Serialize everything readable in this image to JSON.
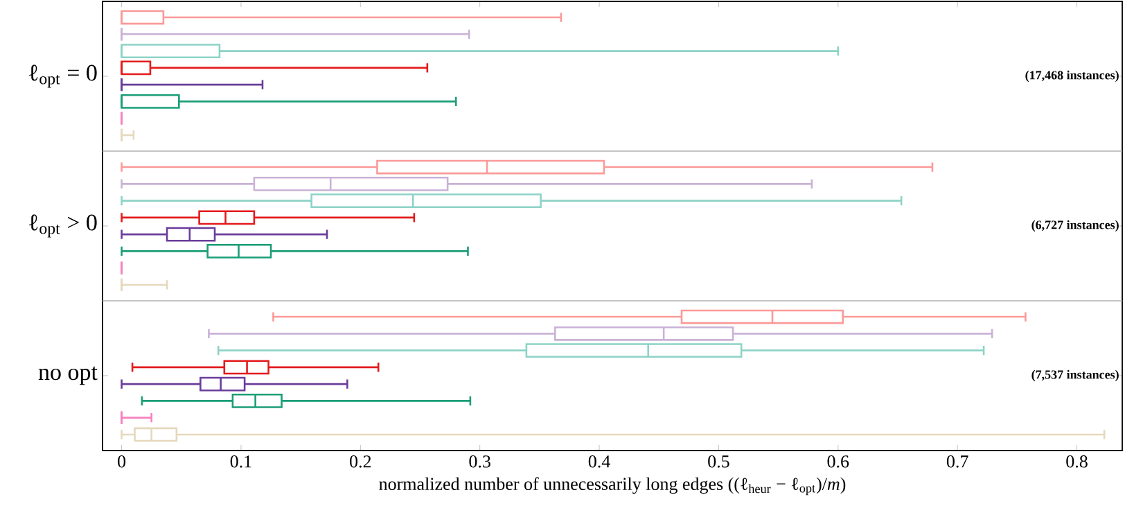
{
  "chart_data": {
    "type": "box",
    "orientation": "horizontal",
    "categories": [
      "ℓ$_{opt}$ = 0",
      "ℓ$_{opt}$ > 0",
      "no opt"
    ],
    "xlabel": "normalized number of unnecessarily long edges ((ℓ$_{heur}$ − ℓ$_{opt}$)/*m*)",
    "xlim": [
      -0.016,
      0.838
    ],
    "xticks": [
      0,
      0.1,
      0.2,
      0.3,
      0.4,
      0.5,
      0.6,
      0.7,
      0.8
    ],
    "annotations": [
      "(17,468 instances)",
      "(6,727 instances)",
      "(7,537 instances)"
    ],
    "series": [
      {
        "color": "#fb9a99",
        "boxes": [
          {
            "low": 0,
            "q1": 0,
            "median": 0,
            "q3": 0.035,
            "high": 0.368
          },
          {
            "low": 0,
            "q1": 0.214,
            "median": 0.306,
            "q3": 0.404,
            "high": 0.679
          },
          {
            "low": 0.127,
            "q1": 0.469,
            "median": 0.545,
            "q3": 0.604,
            "high": 0.757
          }
        ]
      },
      {
        "color": "#cab2d6",
        "boxes": [
          {
            "low": 0,
            "q1": 0,
            "median": 0,
            "q3": 0,
            "high": 0.291
          },
          {
            "low": 0,
            "q1": 0.111,
            "median": 0.175,
            "q3": 0.273,
            "high": 0.578
          },
          {
            "low": 0.073,
            "q1": 0.363,
            "median": 0.454,
            "q3": 0.512,
            "high": 0.729
          }
        ]
      },
      {
        "color": "#8dd3c7",
        "boxes": [
          {
            "low": 0,
            "q1": 0,
            "median": 0,
            "q3": 0.082,
            "high": 0.6
          },
          {
            "low": 0,
            "q1": 0.159,
            "median": 0.244,
            "q3": 0.351,
            "high": 0.653
          },
          {
            "low": 0.081,
            "q1": 0.339,
            "median": 0.441,
            "q3": 0.519,
            "high": 0.722
          }
        ]
      },
      {
        "color": "#e31a1c",
        "boxes": [
          {
            "low": 0,
            "q1": 0,
            "median": 0,
            "q3": 0.024,
            "high": 0.256
          },
          {
            "low": 0,
            "q1": 0.065,
            "median": 0.087,
            "q3": 0.111,
            "high": 0.245
          },
          {
            "low": 0.009,
            "q1": 0.086,
            "median": 0.105,
            "q3": 0.123,
            "high": 0.215
          }
        ]
      },
      {
        "color": "#6a3d9a",
        "boxes": [
          {
            "low": 0,
            "q1": 0,
            "median": 0,
            "q3": 0,
            "high": 0.118
          },
          {
            "low": 0,
            "q1": 0.038,
            "median": 0.057,
            "q3": 0.078,
            "high": 0.172
          },
          {
            "low": 0,
            "q1": 0.066,
            "median": 0.083,
            "q3": 0.103,
            "high": 0.189
          }
        ]
      },
      {
        "color": "#1b9e77",
        "boxes": [
          {
            "low": 0,
            "q1": 0,
            "median": 0,
            "q3": 0.048,
            "high": 0.28
          },
          {
            "low": 0,
            "q1": 0.072,
            "median": 0.098,
            "q3": 0.125,
            "high": 0.29
          },
          {
            "low": 0.017,
            "q1": 0.093,
            "median": 0.112,
            "q3": 0.134,
            "high": 0.292
          }
        ]
      },
      {
        "color": "#f781bf",
        "boxes": [
          {
            "low": 0,
            "q1": 0,
            "median": 0,
            "q3": 0,
            "high": 0
          },
          {
            "low": 0,
            "q1": 0,
            "median": 0,
            "q3": 0,
            "high": 0
          },
          {
            "low": 0,
            "q1": 0,
            "median": 0,
            "q3": 0,
            "high": 0.025
          }
        ]
      },
      {
        "color": "#e5d8bd",
        "boxes": [
          {
            "low": 0,
            "q1": 0,
            "median": 0,
            "q3": 0,
            "high": 0.01
          },
          {
            "low": 0,
            "q1": 0,
            "median": 0,
            "q3": 0,
            "high": 0.038
          },
          {
            "low": 0,
            "q1": 0.011,
            "median": 0.025,
            "q3": 0.046,
            "high": 0.823
          }
        ]
      }
    ]
  }
}
